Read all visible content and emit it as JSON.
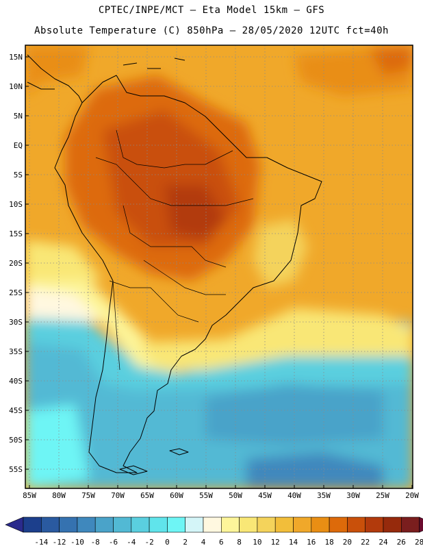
{
  "header": {
    "line1": "CPTEC/INPE/MCT –  Eta Model 15km – GFS",
    "line2": "Absolute Temperature (C) 850hPa – 28/05/2020 12UTC fct=40h"
  },
  "map": {
    "lat_labels": [
      "15N",
      "10N",
      "5N",
      "EQ",
      "5S",
      "10S",
      "15S",
      "20S",
      "25S",
      "30S",
      "35S",
      "40S",
      "45S",
      "50S",
      "55S"
    ],
    "lon_labels": [
      "85W",
      "80W",
      "75W",
      "70W",
      "65W",
      "60W",
      "55W",
      "50W",
      "45W",
      "40W",
      "35W",
      "30W",
      "25W",
      "20W"
    ]
  },
  "colorbar": {
    "labels": [
      "-14",
      "-12",
      "-10",
      "-8",
      "-6",
      "-4",
      "-2",
      "0",
      "2",
      "4",
      "6",
      "8",
      "10",
      "12",
      "14",
      "16",
      "18",
      "20",
      "22",
      "24",
      "26",
      "28"
    ],
    "colors": [
      "#1c3f8c",
      "#2a5aa0",
      "#3572b0",
      "#3f88bd",
      "#4aa3c9",
      "#52b9d4",
      "#5acfdf",
      "#60e4eb",
      "#6ef5f5",
      "#d4f5f8",
      "#fff8e0",
      "#fdf59a",
      "#f9e776",
      "#f4d35b",
      "#f2be3a",
      "#f0a82a",
      "#e98e14",
      "#dd6a0a",
      "#c9500a",
      "#b23a0c",
      "#962a0c",
      "#7a1e1e"
    ],
    "min_arrow_color": "#2a2a8c",
    "max_arrow_color": "#6a0a2e"
  }
}
